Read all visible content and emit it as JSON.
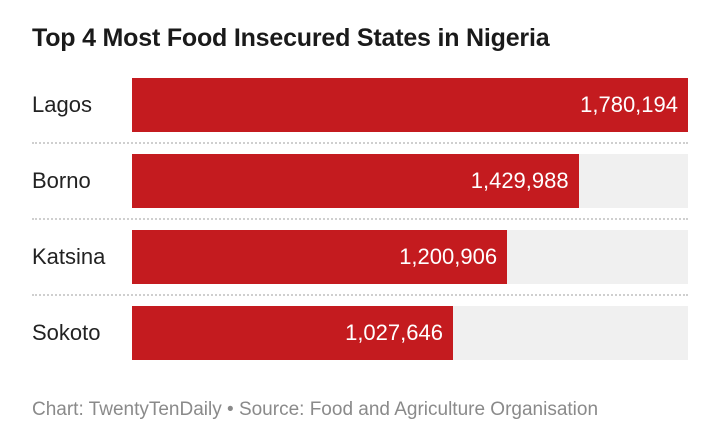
{
  "chart_data": {
    "type": "bar",
    "orientation": "horizontal",
    "title": "Top 4 Most Food Insecured States in Nigeria",
    "categories": [
      "Lagos",
      "Borno",
      "Katsina",
      "Sokoto"
    ],
    "values": [
      1780194,
      1429988,
      1200906,
      1027646
    ],
    "value_labels": [
      "1,780,194",
      "1,429,988",
      "1,200,906",
      "1,027,646"
    ],
    "xlim": [
      0,
      1780194
    ],
    "bar_color": "#c41b1f",
    "track_color": "#f0f0f0",
    "footer": "Chart: TwentyTenDaily • Source: Food and Agriculture Organisation"
  }
}
